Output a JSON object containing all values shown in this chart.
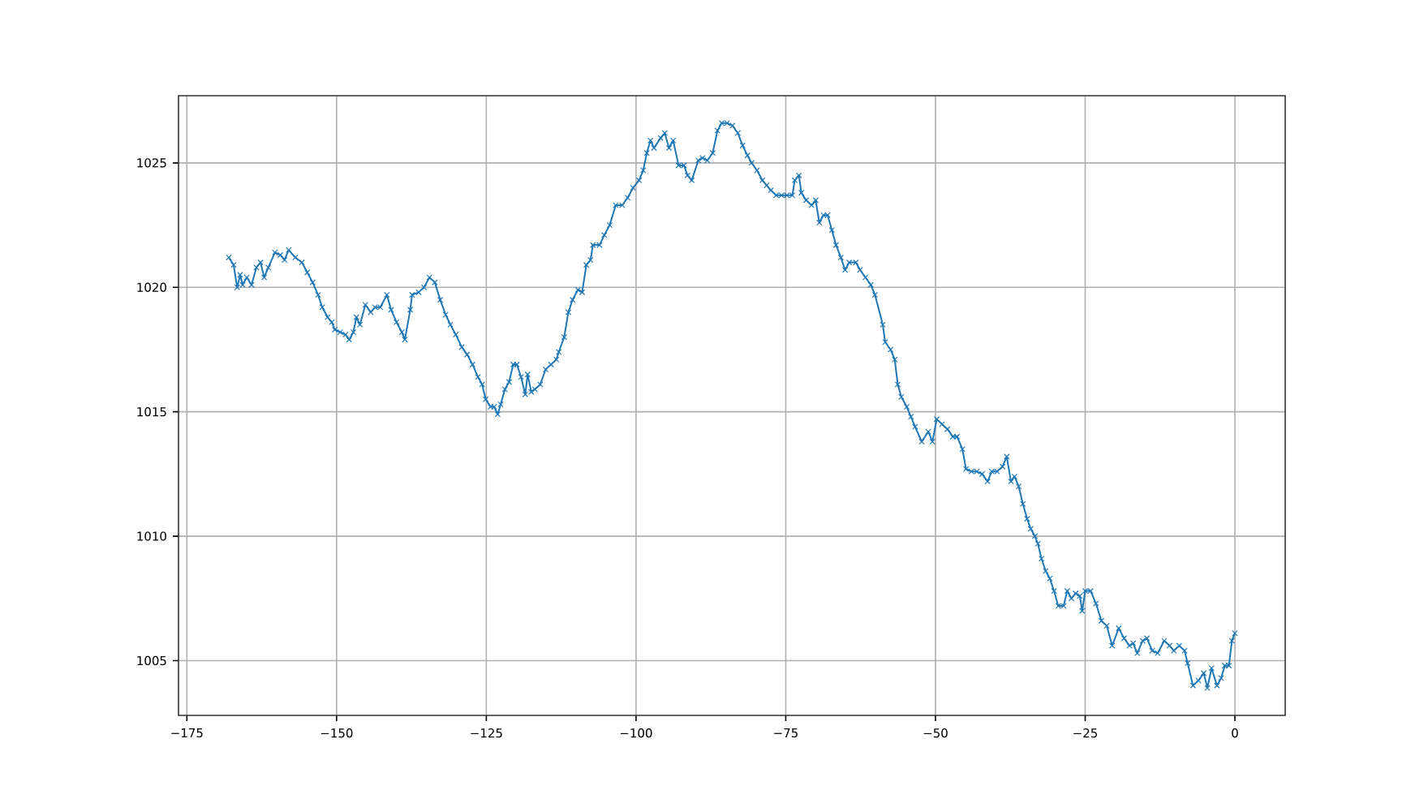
{
  "chart_data": {
    "type": "line",
    "color": "#1f77b4",
    "marker": "cross",
    "line_style": "solid",
    "grid": true,
    "xlim": [
      -176.4,
      8.4
    ],
    "ylim": [
      1002.8,
      1027.7
    ],
    "xticks": [
      {
        "value": -175,
        "label": "−175"
      },
      {
        "value": -150,
        "label": "−150"
      },
      {
        "value": -125,
        "label": "−125"
      },
      {
        "value": -100,
        "label": "−100"
      },
      {
        "value": -75,
        "label": "−75"
      },
      {
        "value": -50,
        "label": "−50"
      },
      {
        "value": -25,
        "label": "−25"
      },
      0
    ],
    "yticks": [
      1005,
      1010,
      1015,
      1020,
      1025
    ],
    "x": [
      -168,
      -167.2,
      -166.6,
      -166.1,
      -165.7,
      -165,
      -164.2,
      -163.4,
      -162.7,
      -162.1,
      -161.4,
      -160.3,
      -159.4,
      -158.7,
      -158,
      -156.9,
      -155.8,
      -154.9,
      -154,
      -153.1,
      -152.4,
      -151.5,
      -150.8,
      -150.3,
      -149.4,
      -148.5,
      -147.9,
      -147.2,
      -146.7,
      -146.1,
      -145.2,
      -144.3,
      -143.6,
      -142.7,
      -141.6,
      -140.9,
      -140,
      -139.1,
      -138.6,
      -137.7,
      -137.4,
      -136.3,
      -135.4,
      -134.5,
      -133.6,
      -132.7,
      -131.8,
      -131,
      -130.1,
      -129.1,
      -128.2,
      -127.3,
      -126.4,
      -125.7,
      -125.1,
      -124.3,
      -123.7,
      -123.1,
      -122.6,
      -121.9,
      -121.2,
      -120.5,
      -119.9,
      -119.2,
      -118.5,
      -118.1,
      -117.5,
      -116.9,
      -116,
      -115.1,
      -114.2,
      -113.3,
      -112.9,
      -112,
      -111.3,
      -110.6,
      -109.7,
      -109,
      -108.3,
      -107.6,
      -107.2,
      -106.1,
      -105.3,
      -104.4,
      -103.4,
      -102.3,
      -101.4,
      -100.5,
      -99.5,
      -98.8,
      -98.2,
      -97.6,
      -97,
      -95.9,
      -95.2,
      -94.5,
      -93.8,
      -92.9,
      -92,
      -91.4,
      -90.7,
      -89.6,
      -88.9,
      -88.1,
      -87.2,
      -86.4,
      -85.7,
      -84.8,
      -83.9,
      -83,
      -82.2,
      -81.4,
      -80.7,
      -79.8,
      -78.9,
      -78.2,
      -77.5,
      -76.6,
      -75.7,
      -74.8,
      -73.9,
      -73.5,
      -72.8,
      -72.4,
      -71.6,
      -70.7,
      -70,
      -69.4,
      -68.7,
      -68,
      -67.3,
      -66.6,
      -65.8,
      -65.1,
      -64.4,
      -63.3,
      -62.6,
      -61.7,
      -60.8,
      -60.1,
      -58.8,
      -58.4,
      -57.5,
      -56.8,
      -56.3,
      -55.7,
      -54.8,
      -54.1,
      -53.4,
      -52.3,
      -51.2,
      -50.5,
      -49.8,
      -48.9,
      -48,
      -47.1,
      -46.4,
      -45.5,
      -44.9,
      -44,
      -43.1,
      -42.2,
      -41.3,
      -40.6,
      -39.7,
      -38.8,
      -38.1,
      -37.4,
      -36.8,
      -36.1,
      -35.4,
      -34.7,
      -34.1,
      -33.4,
      -32.9,
      -32.3,
      -31.6,
      -30.9,
      -30.2,
      -29.5,
      -28.6,
      -28,
      -27.3,
      -26.6,
      -25.9,
      -25.5,
      -25,
      -24.1,
      -23.2,
      -22.3,
      -21.4,
      -20.5,
      -19.4,
      -18.5,
      -17.6,
      -17,
      -16.3,
      -15.4,
      -14.7,
      -13.8,
      -12.9,
      -11.8,
      -10.9,
      -10.2,
      -9.3,
      -8.4,
      -7.9,
      -7,
      -6.1,
      -5.2,
      -4.6,
      -3.9,
      -3,
      -2.3,
      -1.7,
      -1,
      -0.5,
      0
    ],
    "values": [
      1021.2,
      1020.9,
      1020.0,
      1020.5,
      1020.1,
      1020.4,
      1020.1,
      1020.8,
      1021.0,
      1020.4,
      1020.8,
      1021.4,
      1021.3,
      1021.1,
      1021.5,
      1021.2,
      1021.0,
      1020.6,
      1020.2,
      1019.7,
      1019.2,
      1018.8,
      1018.6,
      1018.3,
      1018.2,
      1018.1,
      1017.9,
      1018.2,
      1018.8,
      1018.5,
      1019.3,
      1019.0,
      1019.2,
      1019.2,
      1019.7,
      1019.1,
      1018.6,
      1018.2,
      1017.9,
      1019.1,
      1019.7,
      1019.8,
      1020.0,
      1020.4,
      1020.2,
      1019.5,
      1018.9,
      1018.5,
      1018.1,
      1017.6,
      1017.3,
      1016.9,
      1016.4,
      1016.1,
      1015.5,
      1015.2,
      1015.2,
      1014.9,
      1015.3,
      1015.9,
      1016.2,
      1016.9,
      1016.9,
      1016.4,
      1015.7,
      1016.5,
      1015.8,
      1015.9,
      1016.1,
      1016.7,
      1016.9,
      1017.1,
      1017.4,
      1018.0,
      1019.0,
      1019.5,
      1019.9,
      1019.8,
      1020.9,
      1021.1,
      1021.7,
      1021.7,
      1022.1,
      1022.5,
      1023.3,
      1023.3,
      1023.6,
      1024.0,
      1024.3,
      1024.7,
      1025.4,
      1025.9,
      1025.6,
      1026.0,
      1026.2,
      1025.6,
      1025.9,
      1024.9,
      1024.9,
      1024.5,
      1024.3,
      1025.1,
      1025.2,
      1025.1,
      1025.4,
      1026.3,
      1026.6,
      1026.6,
      1026.5,
      1026.2,
      1025.7,
      1025.3,
      1025.0,
      1024.7,
      1024.3,
      1024.1,
      1023.9,
      1023.7,
      1023.7,
      1023.7,
      1023.7,
      1024.3,
      1024.5,
      1023.8,
      1023.5,
      1023.3,
      1023.5,
      1022.6,
      1022.9,
      1022.9,
      1022.3,
      1021.7,
      1021.2,
      1020.7,
      1021.0,
      1021.0,
      1020.7,
      1020.4,
      1020.1,
      1019.7,
      1018.5,
      1017.8,
      1017.5,
      1017.1,
      1016.1,
      1015.6,
      1015.2,
      1014.8,
      1014.4,
      1013.8,
      1014.2,
      1013.8,
      1014.7,
      1014.5,
      1014.3,
      1014.0,
      1014.0,
      1013.5,
      1012.7,
      1012.6,
      1012.6,
      1012.5,
      1012.2,
      1012.6,
      1012.6,
      1012.8,
      1013.2,
      1012.2,
      1012.4,
      1012.0,
      1011.3,
      1010.7,
      1010.3,
      1010.0,
      1009.7,
      1009.1,
      1008.6,
      1008.3,
      1007.8,
      1007.2,
      1007.2,
      1007.8,
      1007.5,
      1007.7,
      1007.6,
      1007.0,
      1007.8,
      1007.8,
      1007.3,
      1006.6,
      1006.4,
      1005.6,
      1006.3,
      1005.9,
      1005.6,
      1005.7,
      1005.3,
      1005.8,
      1005.9,
      1005.4,
      1005.3,
      1005.8,
      1005.6,
      1005.4,
      1005.6,
      1005.4,
      1004.9,
      1004.0,
      1004.2,
      1004.5,
      1003.9,
      1004.7,
      1004.0,
      1004.3,
      1004.8,
      1004.8,
      1005.8,
      1006.1
    ]
  }
}
